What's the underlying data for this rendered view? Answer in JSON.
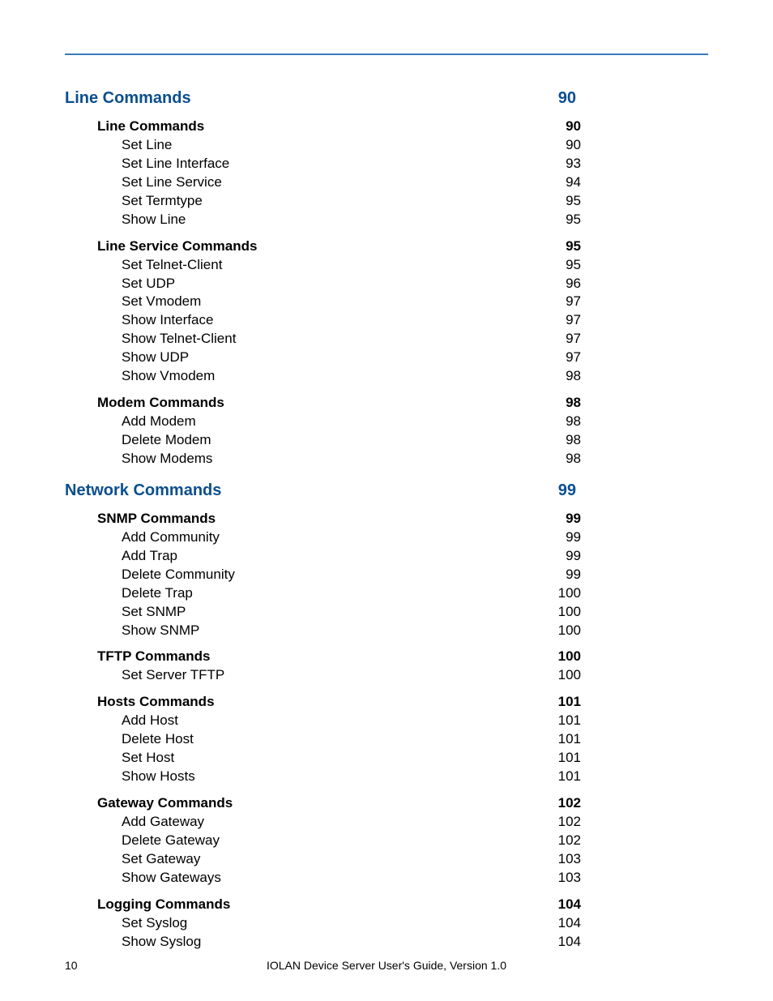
{
  "footer": {
    "page_number": "10",
    "title": "IOLAN Device Server User's Guide, Version 1.0"
  },
  "colors": {
    "rule": "#3a7ab8",
    "heading": "#0a4f8f",
    "text": "#000000",
    "background": "#ffffff"
  },
  "toc": [
    {
      "level": 1,
      "label": "Line Commands",
      "page": "90"
    },
    {
      "level": 2,
      "label": "Line Commands",
      "page": "90"
    },
    {
      "level": 3,
      "label": "Set Line",
      "page": "90"
    },
    {
      "level": 3,
      "label": "Set Line Interface",
      "page": "93"
    },
    {
      "level": 3,
      "label": "Set Line Service",
      "page": "94"
    },
    {
      "level": 3,
      "label": "Set Termtype",
      "page": "95"
    },
    {
      "level": 3,
      "label": "Show Line",
      "page": "95"
    },
    {
      "level": 2,
      "label": "Line Service Commands",
      "page": "95"
    },
    {
      "level": 3,
      "label": "Set Telnet-Client",
      "page": "95"
    },
    {
      "level": 3,
      "label": "Set UDP",
      "page": "96"
    },
    {
      "level": 3,
      "label": "Set Vmodem",
      "page": "97"
    },
    {
      "level": 3,
      "label": "Show Interface",
      "page": "97"
    },
    {
      "level": 3,
      "label": "Show Telnet-Client",
      "page": "97"
    },
    {
      "level": 3,
      "label": "Show UDP",
      "page": "97"
    },
    {
      "level": 3,
      "label": "Show Vmodem",
      "page": "98"
    },
    {
      "level": 2,
      "label": "Modem Commands",
      "page": "98"
    },
    {
      "level": 3,
      "label": "Add Modem",
      "page": "98"
    },
    {
      "level": 3,
      "label": "Delete Modem",
      "page": "98"
    },
    {
      "level": 3,
      "label": "Show Modems",
      "page": "98"
    },
    {
      "level": 1,
      "label": "Network Commands",
      "page": "99"
    },
    {
      "level": 2,
      "label": "SNMP Commands",
      "page": "99"
    },
    {
      "level": 3,
      "label": "Add Community",
      "page": "99"
    },
    {
      "level": 3,
      "label": "Add Trap",
      "page": "99"
    },
    {
      "level": 3,
      "label": "Delete Community",
      "page": "99"
    },
    {
      "level": 3,
      "label": "Delete Trap",
      "page": "100"
    },
    {
      "level": 3,
      "label": "Set SNMP",
      "page": "100"
    },
    {
      "level": 3,
      "label": "Show SNMP",
      "page": "100"
    },
    {
      "level": 2,
      "label": "TFTP Commands",
      "page": "100"
    },
    {
      "level": 3,
      "label": "Set Server TFTP",
      "page": "100"
    },
    {
      "level": 2,
      "label": "Hosts Commands",
      "page": "101"
    },
    {
      "level": 3,
      "label": "Add Host",
      "page": "101"
    },
    {
      "level": 3,
      "label": "Delete Host",
      "page": "101"
    },
    {
      "level": 3,
      "label": "Set Host",
      "page": "101"
    },
    {
      "level": 3,
      "label": "Show Hosts",
      "page": "101"
    },
    {
      "level": 2,
      "label": "Gateway Commands",
      "page": "102"
    },
    {
      "level": 3,
      "label": "Add Gateway",
      "page": "102"
    },
    {
      "level": 3,
      "label": "Delete Gateway",
      "page": "102"
    },
    {
      "level": 3,
      "label": "Set Gateway",
      "page": "103"
    },
    {
      "level": 3,
      "label": "Show Gateways",
      "page": "103"
    },
    {
      "level": 2,
      "label": "Logging Commands",
      "page": "104"
    },
    {
      "level": 3,
      "label": "Set Syslog",
      "page": "104"
    },
    {
      "level": 3,
      "label": "Show Syslog",
      "page": "104"
    }
  ]
}
